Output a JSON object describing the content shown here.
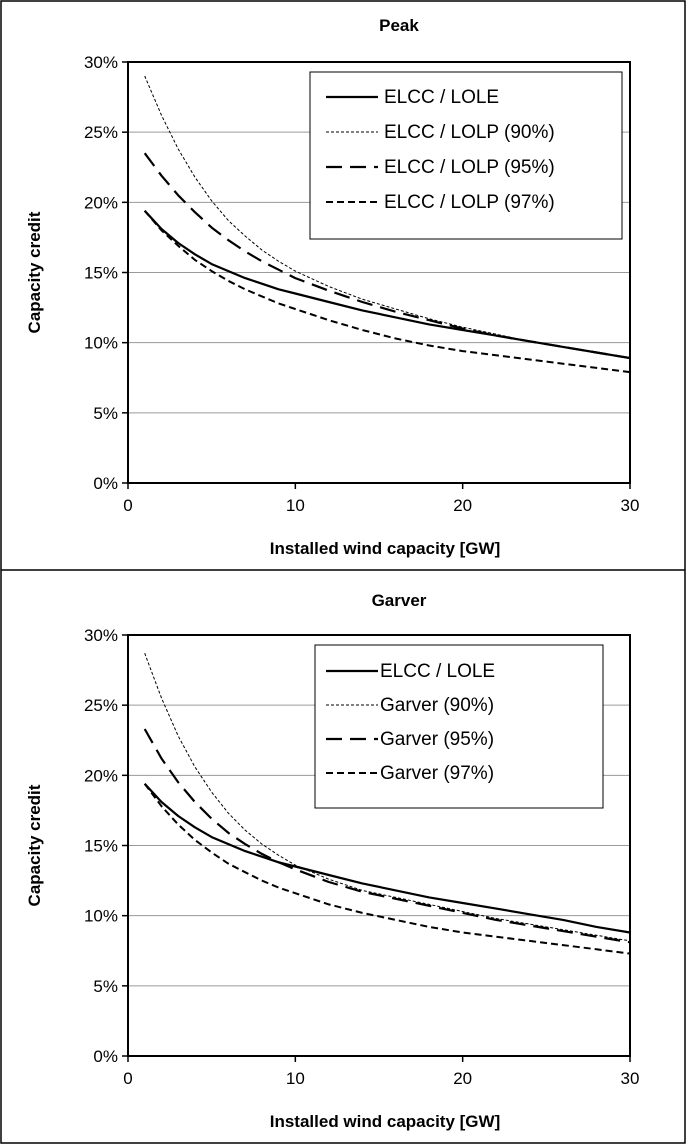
{
  "chart_data": [
    {
      "type": "line",
      "title": "Peak",
      "xlabel": "Installed wind capacity [GW]",
      "ylabel": "Capacity credit",
      "xlim": [
        0,
        30
      ],
      "ylim": [
        0,
        0.3
      ],
      "xticks": [
        "0",
        "10",
        "20",
        "30"
      ],
      "yticks": [
        "0%",
        "5%",
        "10%",
        "15%",
        "20%",
        "25%",
        "30%"
      ],
      "grid": "horizontal",
      "legend": "top-right",
      "x": [
        1,
        2,
        3,
        4,
        5,
        6,
        7,
        8,
        9,
        10,
        12,
        14,
        16,
        18,
        20,
        22,
        24,
        26,
        28,
        30
      ],
      "series": [
        {
          "name": "ELCC / LOLE",
          "style": "solid",
          "values": [
            0.194,
            0.181,
            0.171,
            0.163,
            0.156,
            0.151,
            0.146,
            0.142,
            0.138,
            0.135,
            0.129,
            0.123,
            0.118,
            0.113,
            0.109,
            0.105,
            0.101,
            0.097,
            0.093,
            0.089
          ]
        },
        {
          "name": "ELCC / LOLP (90%)",
          "style": "fine-dotted",
          "values": [
            0.29,
            0.262,
            0.238,
            0.218,
            0.201,
            0.187,
            0.176,
            0.166,
            0.158,
            0.151,
            0.14,
            0.131,
            0.124,
            0.117,
            0.111,
            0.106,
            0.101,
            0.097,
            0.093,
            0.089
          ]
        },
        {
          "name": "ELCC / LOLP (95%)",
          "style": "long-dash",
          "values": [
            0.235,
            0.219,
            0.205,
            0.193,
            0.182,
            0.173,
            0.165,
            0.158,
            0.152,
            0.146,
            0.137,
            0.129,
            0.122,
            0.116,
            0.11,
            0.105,
            0.101,
            0.097,
            0.093,
            0.089
          ]
        },
        {
          "name": "ELCC / LOLP (97%)",
          "style": "short-dash",
          "values": [
            0.194,
            0.18,
            0.169,
            0.159,
            0.151,
            0.144,
            0.138,
            0.133,
            0.128,
            0.124,
            0.116,
            0.109,
            0.103,
            0.098,
            0.094,
            0.091,
            0.088,
            0.085,
            0.082,
            0.079
          ]
        }
      ]
    },
    {
      "type": "line",
      "title": "Garver",
      "xlabel": "Installed wind capacity [GW]",
      "ylabel": "Capacity credit",
      "xlim": [
        0,
        30
      ],
      "ylim": [
        0,
        0.3
      ],
      "xticks": [
        "0",
        "10",
        "20",
        "30"
      ],
      "yticks": [
        "0%",
        "5%",
        "10%",
        "15%",
        "20%",
        "25%",
        "30%"
      ],
      "grid": "horizontal",
      "legend": "top-right",
      "x": [
        1,
        2,
        3,
        4,
        5,
        6,
        7,
        8,
        9,
        10,
        12,
        14,
        16,
        18,
        20,
        22,
        24,
        26,
        28,
        30
      ],
      "series": [
        {
          "name": "ELCC / LOLE",
          "style": "solid",
          "values": [
            0.194,
            0.181,
            0.171,
            0.163,
            0.156,
            0.151,
            0.146,
            0.142,
            0.138,
            0.135,
            0.129,
            0.123,
            0.118,
            0.113,
            0.109,
            0.105,
            0.101,
            0.097,
            0.092,
            0.088
          ]
        },
        {
          "name": "Garver (90%)",
          "style": "fine-dotted",
          "values": [
            0.287,
            0.255,
            0.228,
            0.206,
            0.188,
            0.173,
            0.161,
            0.151,
            0.143,
            0.136,
            0.126,
            0.118,
            0.113,
            0.108,
            0.103,
            0.098,
            0.094,
            0.09,
            0.086,
            0.082
          ]
        },
        {
          "name": "Garver (95%)",
          "style": "long-dash",
          "values": [
            0.233,
            0.212,
            0.195,
            0.181,
            0.169,
            0.159,
            0.151,
            0.144,
            0.138,
            0.133,
            0.124,
            0.117,
            0.112,
            0.107,
            0.102,
            0.097,
            0.093,
            0.089,
            0.085,
            0.081
          ]
        },
        {
          "name": "Garver (97%)",
          "style": "short-dash",
          "values": [
            0.194,
            0.178,
            0.165,
            0.154,
            0.145,
            0.137,
            0.131,
            0.125,
            0.12,
            0.116,
            0.108,
            0.102,
            0.097,
            0.092,
            0.088,
            0.085,
            0.082,
            0.079,
            0.076,
            0.073
          ]
        }
      ]
    }
  ]
}
